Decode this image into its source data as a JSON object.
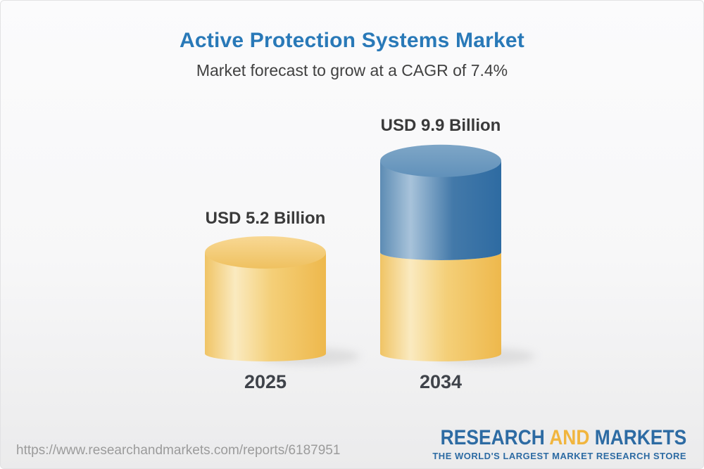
{
  "header": {
    "title": "Active Protection Systems Market",
    "subtitle": "Market forecast to grow at a CAGR of 7.4%"
  },
  "chart_data": {
    "type": "bar",
    "subtype": "3d-cylinder-stacked",
    "title": "Active Protection Systems Market",
    "subtitle": "Market forecast to grow at a CAGR of 7.4%",
    "cagr_percent": 7.4,
    "unit": "USD Billion",
    "categories": [
      "2025",
      "2034"
    ],
    "values": [
      5.2,
      9.9
    ],
    "value_labels": [
      "USD 5.2 Billion",
      "USD 9.9 Billion"
    ],
    "ylim": [
      0,
      9.9
    ],
    "gridlines": false,
    "legend": "none",
    "colors": {
      "base_segment_gold": "#f2c766",
      "growth_segment_blue": "#4a80ad"
    }
  },
  "footer": {
    "url": "https://www.researchandmarkets.com/reports/6187951",
    "logo": {
      "word1": "RESEARCH",
      "word2": "AND",
      "word3": "MARKETS",
      "tagline": "THE WORLD'S LARGEST MARKET RESEARCH STORE",
      "blue": "#2d6ba3",
      "gold": "#f1b53e"
    }
  },
  "colors": {
    "title_blue": "#2979b8",
    "subtitle_gray": "#414141",
    "label_dark": "#3a3a3a",
    "url_gray": "#9b9b9b"
  }
}
